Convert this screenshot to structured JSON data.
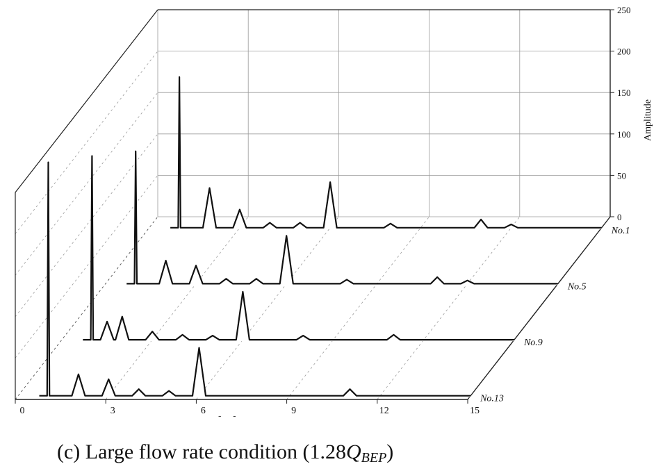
{
  "chart_data": {
    "type": "line",
    "subtype": "3d-waterfall",
    "title": "",
    "xlabel": "f / f_n",
    "xlabel_parts": {
      "f": "f",
      "slash": "/",
      "fn_main": "f",
      "fn_sub": "n"
    },
    "ylabel": "",
    "zlabel": "Amplitude",
    "xlim": [
      0,
      15
    ],
    "zlim": [
      0,
      250
    ],
    "x_ticks": [
      "0",
      "3",
      "6",
      "9",
      "12",
      "15"
    ],
    "z_ticks": [
      "0",
      "50",
      "100",
      "150",
      "200",
      "250"
    ],
    "grid": true,
    "series": [
      {
        "name": "No.1",
        "peaks": [
          {
            "x": 1.0,
            "y": 182
          },
          {
            "x": 2.0,
            "y": 48
          },
          {
            "x": 3.0,
            "y": 22
          },
          {
            "x": 4.0,
            "y": 6
          },
          {
            "x": 5.0,
            "y": 6
          },
          {
            "x": 6.0,
            "y": 55
          },
          {
            "x": 8.0,
            "y": 5
          },
          {
            "x": 11.0,
            "y": 10
          },
          {
            "x": 12.0,
            "y": 4
          }
        ]
      },
      {
        "name": "No.5",
        "peaks": [
          {
            "x": 1.0,
            "y": 160
          },
          {
            "x": 2.0,
            "y": 28
          },
          {
            "x": 3.0,
            "y": 22
          },
          {
            "x": 4.0,
            "y": 6
          },
          {
            "x": 5.0,
            "y": 6
          },
          {
            "x": 6.0,
            "y": 58
          },
          {
            "x": 8.0,
            "y": 5
          },
          {
            "x": 11.0,
            "y": 8
          },
          {
            "x": 12.0,
            "y": 4
          }
        ]
      },
      {
        "name": "No.9",
        "peaks": [
          {
            "x": 1.0,
            "y": 222
          },
          {
            "x": 1.5,
            "y": 22
          },
          {
            "x": 2.0,
            "y": 28
          },
          {
            "x": 3.0,
            "y": 10
          },
          {
            "x": 4.0,
            "y": 6
          },
          {
            "x": 5.0,
            "y": 5
          },
          {
            "x": 6.0,
            "y": 58
          },
          {
            "x": 8.0,
            "y": 5
          },
          {
            "x": 11.0,
            "y": 6
          }
        ]
      },
      {
        "name": "No.13",
        "peaks": [
          {
            "x": 1.0,
            "y": 282
          },
          {
            "x": 2.0,
            "y": 26
          },
          {
            "x": 3.0,
            "y": 20
          },
          {
            "x": 4.0,
            "y": 8
          },
          {
            "x": 5.0,
            "y": 6
          },
          {
            "x": 6.0,
            "y": 58
          },
          {
            "x": 11.0,
            "y": 8
          }
        ]
      }
    ]
  },
  "caption": {
    "prefix": "(c) Large flow rate condition (1.28",
    "q": "Q",
    "sub": "BEP",
    "suffix": ")"
  }
}
